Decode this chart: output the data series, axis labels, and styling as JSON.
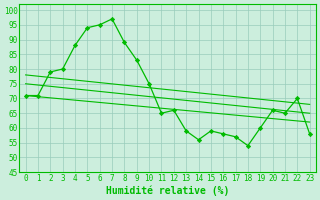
{
  "xlabel": "Humidité relative (%)",
  "bg_color": "#cceedd",
  "grid_color": "#99ccbb",
  "line_color": "#00bb00",
  "xlim": [
    -0.5,
    23.5
  ],
  "ylim": [
    45,
    102
  ],
  "yticks": [
    45,
    50,
    55,
    60,
    65,
    70,
    75,
    80,
    85,
    90,
    95,
    100
  ],
  "xticks": [
    0,
    1,
    2,
    3,
    4,
    5,
    6,
    7,
    8,
    9,
    10,
    11,
    12,
    13,
    14,
    15,
    16,
    17,
    18,
    19,
    20,
    21,
    22,
    23
  ],
  "main_series": [
    71,
    71,
    79,
    80,
    88,
    94,
    95,
    97,
    89,
    83,
    75,
    65,
    66,
    59,
    56,
    59,
    58,
    57,
    54,
    60,
    66,
    65,
    70,
    58
  ],
  "trend1_x": [
    0,
    23
  ],
  "trend1_y": [
    78,
    68
  ],
  "trend2_x": [
    0,
    23
  ],
  "trend2_y": [
    75,
    65
  ],
  "trend3_x": [
    0,
    23
  ],
  "trend3_y": [
    71,
    62
  ],
  "xlabel_fontsize": 7,
  "tick_fontsize": 5.5
}
